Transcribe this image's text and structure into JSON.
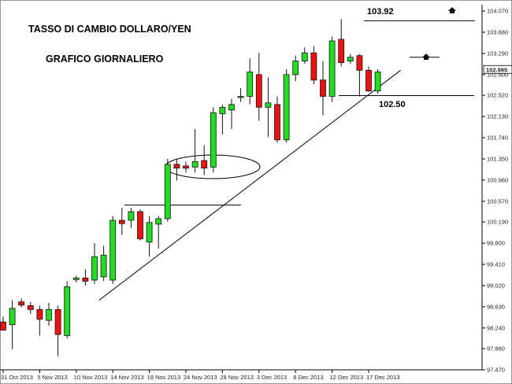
{
  "chart_data": {
    "type": "candlestick",
    "title": "TASSO DI CAMBIO DOLLARO/YEN",
    "subtitle": "GRAFICO GIORNALIERO",
    "ylim": [
      97.47,
      104.2
    ],
    "y_ticks": [
      "104.070",
      "103.680",
      "103.290",
      "102.900",
      "102.520",
      "102.130",
      "101.740",
      "101.350",
      "100.960",
      "100.570",
      "100.190",
      "99.800",
      "99.410",
      "99.020",
      "98.630",
      "98.240",
      "97.860",
      "97.470"
    ],
    "x_ticks": [
      "31 Oct 2013",
      "5 Nov 2013",
      "10 Nov 2013",
      "14 Nov 2013",
      "19 Nov 2013",
      "24 Nov 2013",
      "28 Nov 2013",
      "3 Dec 2013",
      "8 Dec 2013",
      "12 Dec 2013",
      "17 Dec 2013"
    ],
    "x_tick_index": [
      0,
      4,
      8,
      12,
      16,
      20,
      24,
      28,
      32,
      36,
      40
    ],
    "current_price": "102.995",
    "candles": [
      {
        "o": 98.35,
        "h": 98.45,
        "l": 98.2,
        "c": 98.2
      },
      {
        "o": 98.3,
        "h": 98.75,
        "l": 97.85,
        "c": 98.6
      },
      {
        "o": 98.72,
        "h": 98.78,
        "l": 98.62,
        "c": 98.66
      },
      {
        "o": 98.65,
        "h": 98.72,
        "l": 98.5,
        "c": 98.58
      },
      {
        "o": 98.58,
        "h": 98.65,
        "l": 98.1,
        "c": 98.4
      },
      {
        "o": 98.38,
        "h": 98.7,
        "l": 98.28,
        "c": 98.58
      },
      {
        "o": 98.58,
        "h": 98.65,
        "l": 97.72,
        "c": 98.12
      },
      {
        "o": 98.1,
        "h": 99.1,
        "l": 98.05,
        "c": 99.0
      },
      {
        "o": 99.13,
        "h": 99.2,
        "l": 99.08,
        "c": 99.16
      },
      {
        "o": 99.16,
        "h": 99.32,
        "l": 99.02,
        "c": 99.1
      },
      {
        "o": 99.12,
        "h": 99.8,
        "l": 99.05,
        "c": 99.55
      },
      {
        "o": 99.18,
        "h": 99.75,
        "l": 99.1,
        "c": 99.58
      },
      {
        "o": 99.12,
        "h": 100.3,
        "l": 99.05,
        "c": 100.22
      },
      {
        "o": 100.22,
        "h": 100.45,
        "l": 99.95,
        "c": 100.16
      },
      {
        "o": 100.22,
        "h": 100.45,
        "l": 100.08,
        "c": 100.38
      },
      {
        "o": 100.38,
        "h": 100.42,
        "l": 99.85,
        "c": 99.88
      },
      {
        "o": 99.82,
        "h": 100.3,
        "l": 99.55,
        "c": 100.18
      },
      {
        "o": 100.15,
        "h": 100.3,
        "l": 99.7,
        "c": 100.25
      },
      {
        "o": 100.25,
        "h": 101.35,
        "l": 100.2,
        "c": 101.25
      },
      {
        "o": 101.25,
        "h": 101.35,
        "l": 100.95,
        "c": 101.18
      },
      {
        "o": 101.22,
        "h": 101.3,
        "l": 101.1,
        "c": 101.18
      },
      {
        "o": 101.2,
        "h": 101.9,
        "l": 101.1,
        "c": 101.3
      },
      {
        "o": 101.32,
        "h": 101.6,
        "l": 101.05,
        "c": 101.18
      },
      {
        "o": 101.2,
        "h": 102.3,
        "l": 101.1,
        "c": 102.2
      },
      {
        "o": 102.18,
        "h": 102.35,
        "l": 101.8,
        "c": 102.3
      },
      {
        "o": 102.25,
        "h": 102.45,
        "l": 101.9,
        "c": 102.35
      },
      {
        "o": 102.5,
        "h": 102.65,
        "l": 102.4,
        "c": 102.5
      },
      {
        "o": 102.5,
        "h": 103.2,
        "l": 102.35,
        "c": 102.95
      },
      {
        "o": 102.9,
        "h": 103.3,
        "l": 102.05,
        "c": 102.3
      },
      {
        "o": 102.3,
        "h": 102.85,
        "l": 101.75,
        "c": 102.38
      },
      {
        "o": 102.35,
        "h": 102.5,
        "l": 101.65,
        "c": 101.7
      },
      {
        "o": 101.7,
        "h": 103.0,
        "l": 101.65,
        "c": 102.9
      },
      {
        "o": 102.9,
        "h": 103.25,
        "l": 102.78,
        "c": 103.15
      },
      {
        "o": 103.15,
        "h": 103.4,
        "l": 103.1,
        "c": 103.3
      },
      {
        "o": 103.3,
        "h": 103.42,
        "l": 102.72,
        "c": 102.8
      },
      {
        "o": 102.8,
        "h": 103.15,
        "l": 102.15,
        "c": 102.5
      },
      {
        "o": 102.5,
        "h": 103.6,
        "l": 102.4,
        "c": 103.52
      },
      {
        "o": 103.55,
        "h": 103.92,
        "l": 103.05,
        "c": 103.12
      },
      {
        "o": 103.15,
        "h": 103.28,
        "l": 103.1,
        "c": 103.22
      },
      {
        "o": 103.25,
        "h": 103.28,
        "l": 102.5,
        "c": 102.98
      },
      {
        "o": 102.98,
        "h": 103.05,
        "l": 102.58,
        "c": 102.6
      },
      {
        "o": 102.6,
        "h": 103.0,
        "l": 102.55,
        "c": 102.95
      }
    ],
    "annotations": {
      "high_label": "103.92",
      "support_label": "102.50",
      "resistance_level": 100.5,
      "support_level": 102.5,
      "high_level": 103.92,
      "trendline": [
        {
          "i": 10.5,
          "y": 98.75
        },
        {
          "i": 43.5,
          "y": 102.98
        }
      ]
    },
    "colors": {
      "bull": "#22dd22",
      "bear": "#ee1111",
      "wick": "#111111",
      "axis": "#000000"
    }
  }
}
